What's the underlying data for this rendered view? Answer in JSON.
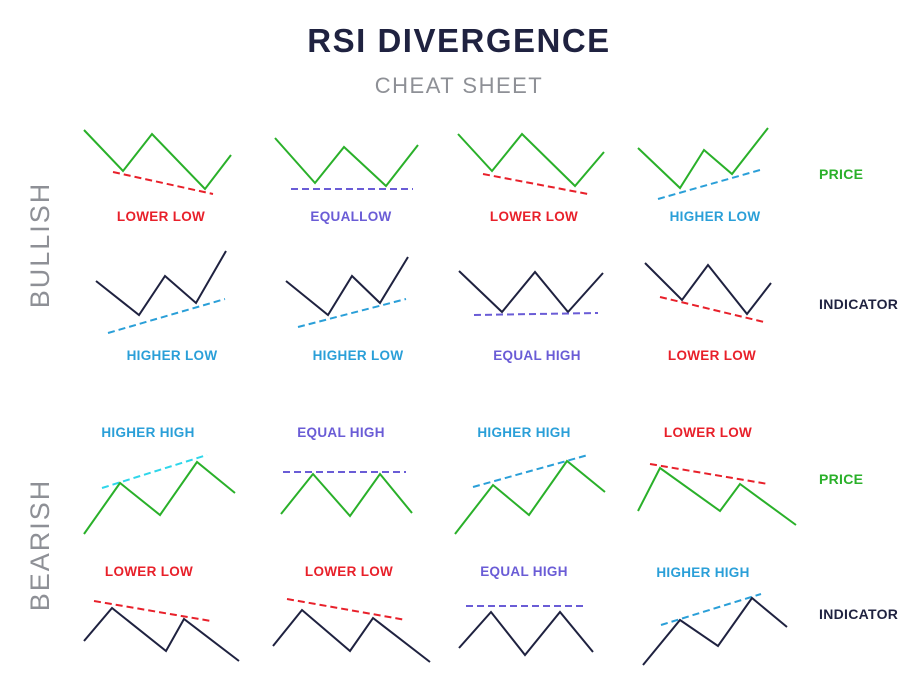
{
  "title": "RSI DIVERGENCE",
  "subtitle": "CHEAT SHEET",
  "colors": {
    "price": "#2ab02a",
    "indicator": "#1f2240",
    "red": "#e8202a",
    "purple": "#6a5cd6",
    "blue": "#2a9fd8",
    "cyan": "#2fd6ea",
    "section": "#8e9096"
  },
  "sections": {
    "bullish": "BULLISH",
    "bearish": "BEARISH"
  },
  "row_labels": {
    "price": "PRICE",
    "indicator": "INDICATOR"
  },
  "bullish": {
    "price_labels": [
      "LOWER LOW",
      "EQUALLOW",
      "LOWER LOW",
      "HIGHER LOW"
    ],
    "indicator_labels": [
      "HIGHER LOW",
      "HIGHER LOW",
      "EQUAL HIGH",
      "LOWER LOW"
    ]
  },
  "bearish": {
    "price_labels": [
      "HIGHER HIGH",
      "EQUAL HIGH",
      "HIGHER HIGH",
      "LOWER LOW"
    ],
    "indicator_labels": [
      "LOWER LOW",
      "LOWER LOW",
      "EQUAL HIGH",
      "HIGHER HIGH"
    ]
  }
}
